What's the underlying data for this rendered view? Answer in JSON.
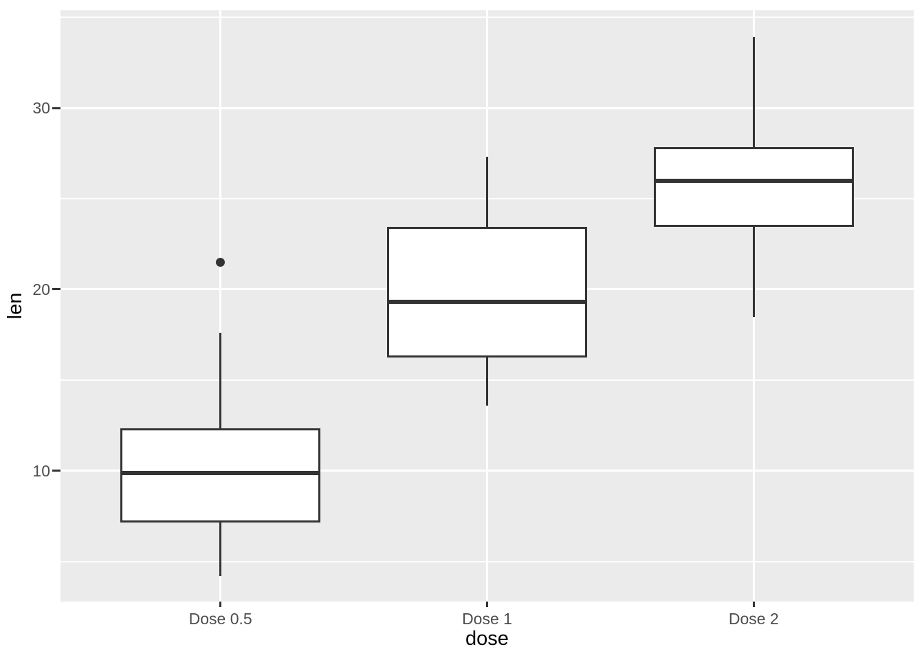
{
  "figure": {
    "background": "#ffffff"
  },
  "chart_data": {
    "type": "boxplot",
    "title": "",
    "xlabel": "dose",
    "ylabel": "len",
    "categories": [
      "Dose 0.5",
      "Dose 1",
      "Dose 2"
    ],
    "series": [
      {
        "category": "Dose 0.5",
        "whisker_low": 4.2,
        "q1": 7.2,
        "median": 9.9,
        "q3": 12.3,
        "whisker_high": 17.6,
        "outliers": [
          21.5
        ]
      },
      {
        "category": "Dose 1",
        "whisker_low": 13.6,
        "q1": 16.3,
        "median": 19.3,
        "q3": 23.4,
        "whisker_high": 27.3,
        "outliers": []
      },
      {
        "category": "Dose 2",
        "whisker_low": 18.5,
        "q1": 23.5,
        "median": 26.0,
        "q3": 27.8,
        "whisker_high": 33.9,
        "outliers": []
      }
    ],
    "ylim": [
      2.8,
      35.38
    ],
    "yticks_major": {
      "values": [
        10,
        20,
        30
      ],
      "labels": [
        "10",
        "20",
        "30"
      ]
    },
    "yticks_minor": [
      5,
      15,
      25,
      35
    ],
    "grid": "on",
    "legend": "none",
    "box_width_fraction": 0.75,
    "style": {
      "panel_bg": "#ebebeb",
      "grid_color": "#ffffff",
      "box_fill": "#ffffff",
      "box_stroke": "#333333",
      "median_color": "#333333",
      "outlier_color": "#333333",
      "tick_mark_color": "#333333",
      "tick_label_color": "#4d4d4d",
      "axis_title_color": "#000000"
    }
  }
}
